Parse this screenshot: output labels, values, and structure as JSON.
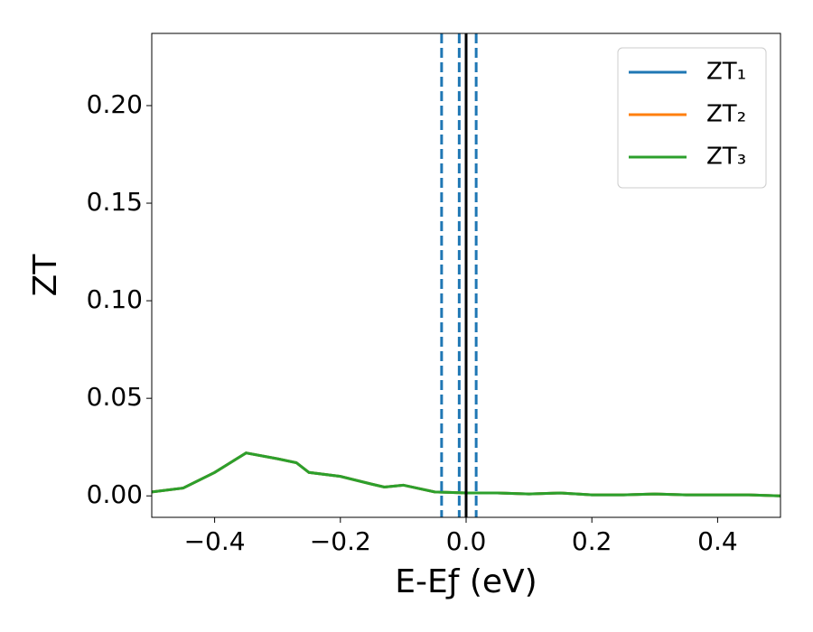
{
  "chart_data": {
    "type": "line",
    "xlabel": "E-Eƒ (eV)",
    "ylabel": "ZT",
    "x": [
      -0.5,
      -0.45,
      -0.4,
      -0.35,
      -0.3,
      -0.27,
      -0.25,
      -0.2,
      -0.15,
      -0.13,
      -0.1,
      -0.05,
      0.0,
      0.05,
      0.1,
      0.15,
      0.2,
      0.25,
      0.3,
      0.35,
      0.4,
      0.45,
      0.5
    ],
    "series": [
      {
        "name": "ZT₁",
        "color": "#1f77b4",
        "values": [
          0.002,
          0.004,
          0.012,
          0.022,
          0.019,
          0.017,
          0.012,
          0.01,
          0.006,
          0.0045,
          0.0055,
          0.002,
          0.0015,
          0.0015,
          0.001,
          0.0015,
          0.0005,
          0.0005,
          0.001,
          0.0005,
          0.0005,
          0.0005,
          0.0
        ]
      },
      {
        "name": "ZT₂",
        "color": "#ff7f0e",
        "values": [
          0.002,
          0.004,
          0.012,
          0.022,
          0.019,
          0.017,
          0.012,
          0.01,
          0.006,
          0.0045,
          0.0055,
          0.002,
          0.0015,
          0.0015,
          0.001,
          0.0015,
          0.0005,
          0.0005,
          0.001,
          0.0005,
          0.0005,
          0.0005,
          0.0
        ]
      },
      {
        "name": "ZT₃",
        "color": "#2ca02c",
        "values": [
          0.002,
          0.004,
          0.012,
          0.022,
          0.019,
          0.017,
          0.012,
          0.01,
          0.006,
          0.0045,
          0.0055,
          0.002,
          0.0015,
          0.0015,
          0.001,
          0.0015,
          0.0005,
          0.0005,
          0.001,
          0.0005,
          0.0005,
          0.0005,
          0.0
        ]
      }
    ],
    "vlines": [
      {
        "x": -0.039,
        "color": "#1f77b4",
        "style": "dashed"
      },
      {
        "x": -0.011,
        "color": "#1f77b4",
        "style": "dashed"
      },
      {
        "x": 0.016,
        "color": "#1f77b4",
        "style": "dashed"
      },
      {
        "x": 0.0,
        "color": "#000000",
        "style": "solid"
      }
    ],
    "xlim": [
      -0.5,
      0.5
    ],
    "xticks": [
      {
        "value": -0.4,
        "label": "−0.4"
      },
      {
        "value": -0.2,
        "label": "−0.2"
      },
      {
        "value": 0.0,
        "label": "0.0"
      },
      {
        "value": 0.2,
        "label": "0.2"
      },
      {
        "value": 0.4,
        "label": "0.4"
      }
    ],
    "ylim": [
      -0.011,
      0.237
    ],
    "yticks": [
      {
        "value": 0.0,
        "label": "0.00"
      },
      {
        "value": 0.05,
        "label": "0.05"
      },
      {
        "value": 0.1,
        "label": "0.10"
      },
      {
        "value": 0.15,
        "label": "0.15"
      },
      {
        "value": 0.2,
        "label": "0.20"
      }
    ],
    "legend": "upper right"
  }
}
